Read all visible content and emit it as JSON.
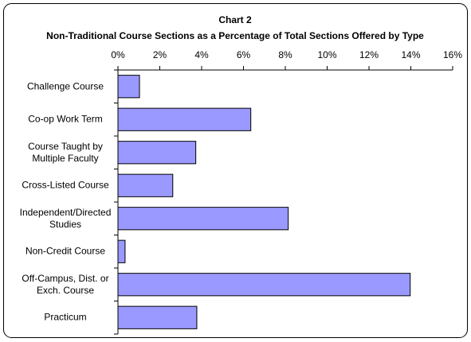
{
  "chart_data": {
    "type": "barh",
    "title": "Chart 2",
    "subtitle": "Non-Traditional Course Sections as a Percentage of Total Sections Offered by Type",
    "categories": [
      "Challenge Course",
      "Co-op Work Term",
      "Course Taught by Multiple Faculty",
      "Cross-Listed Course",
      "Independent/Directed Studies",
      "Non-Credit Course",
      "Off-Campus, Dist. or Exch. Course",
      "Practicum"
    ],
    "values": [
      1.03,
      6.35,
      3.72,
      2.62,
      8.14,
      0.34,
      13.97,
      3.77
    ],
    "color": "#9999ff",
    "xlim": [
      0,
      16
    ],
    "xticks": [
      {
        "value": 0,
        "label": "0%"
      },
      {
        "value": 2,
        "label": "2%"
      },
      {
        "value": 4,
        "label": "4%"
      },
      {
        "value": 6,
        "label": "6%"
      },
      {
        "value": 8,
        "label": "8%"
      },
      {
        "value": 10,
        "label": "10%"
      },
      {
        "value": 12,
        "label": "12%"
      },
      {
        "value": 14,
        "label": "14%"
      },
      {
        "value": 16,
        "label": "16%"
      }
    ],
    "grid": false
  }
}
